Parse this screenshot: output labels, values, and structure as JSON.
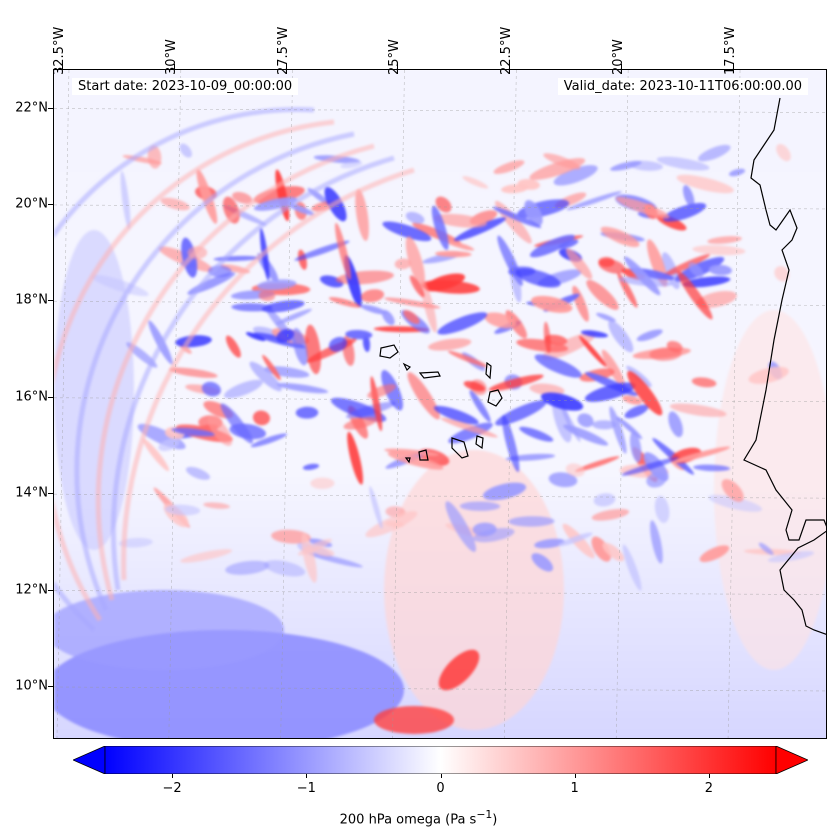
{
  "map": {
    "start_label": "Start date: 2023-10-09_00:00:00",
    "valid_label": "Valid_date: 2023-10-11T06:00:00.00",
    "lon_labels": [
      "32.5°W",
      "30°W",
      "27.5°W",
      "25°W",
      "22.5°W",
      "20°W",
      "17.5°W"
    ],
    "lat_labels": [
      "22°N",
      "20°N",
      "18°N",
      "16°N",
      "14°N",
      "12°N",
      "10°N"
    ],
    "extent": {
      "lon_min": -32.7,
      "lon_max": -15.4,
      "lat_min": 8.9,
      "lat_max": 22.8
    },
    "lon_values": [
      -32.5,
      -30,
      -27.5,
      -25,
      -22.5,
      -20,
      -17.5
    ],
    "lat_values": [
      22,
      20,
      18,
      16,
      14,
      12,
      10
    ]
  },
  "colorbar": {
    "label": "200 hPa omega (Pa s",
    "label_sup": "−1",
    "label_close": ")",
    "tick_labels": [
      "−2",
      "−1",
      "0",
      "1",
      "2"
    ],
    "tick_values": [
      -2,
      -1,
      0,
      1,
      2
    ],
    "range": [
      -2.5,
      2.5
    ],
    "color_min": "#0000ff",
    "color_mid": "#ffffff",
    "color_max": "#ff0000"
  }
}
